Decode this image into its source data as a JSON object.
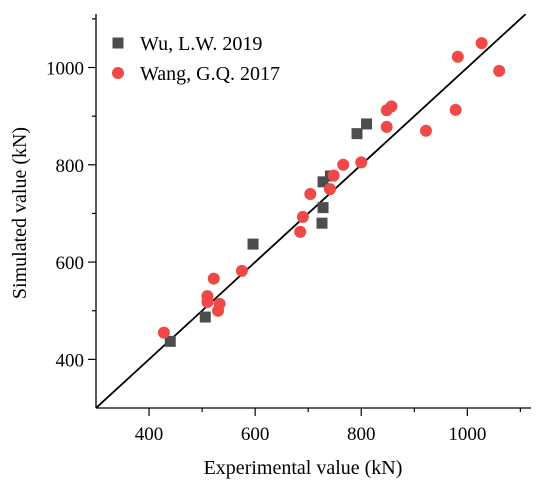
{
  "chart_data": {
    "type": "scatter",
    "xlabel": "Experimental value  (kN)",
    "ylabel": "Simulated value  (kN)",
    "xlim": [
      300,
      1120
    ],
    "ylim": [
      300,
      1110
    ],
    "xticks": [
      400,
      600,
      800,
      1000
    ],
    "yticks": [
      400,
      600,
      800,
      1000
    ],
    "xtick_labels": [
      "400",
      "600",
      "800",
      "1000"
    ],
    "ytick_labels": [
      "400",
      "600",
      "800",
      "1000"
    ],
    "grid": false,
    "legend_position": "top-left",
    "reference_line": {
      "from": [
        300,
        300
      ],
      "to": [
        1110,
        1110
      ]
    },
    "series": [
      {
        "name": "Wu, L.W.  2019",
        "marker": "square",
        "color": "#4d4d4d",
        "x": [
          440,
          506,
          596,
          726,
          728,
          728,
          742,
          792,
          810
        ],
        "y": [
          437,
          487,
          637,
          680,
          712,
          765,
          777,
          864,
          884
        ]
      },
      {
        "name": "Wang, G.Q.  2017",
        "marker": "circle",
        "color": "#f04747",
        "x": [
          428,
          510,
          510,
          522,
          530,
          533,
          575,
          685,
          690,
          704,
          741,
          748,
          766,
          800,
          848,
          848,
          857,
          922,
          978,
          982,
          1027,
          1060
        ],
        "y": [
          455,
          518,
          530,
          566,
          500,
          514,
          582,
          662,
          693,
          740,
          750,
          778,
          800,
          805,
          912,
          878,
          920,
          870,
          913,
          1022,
          1050,
          993
        ]
      }
    ]
  }
}
